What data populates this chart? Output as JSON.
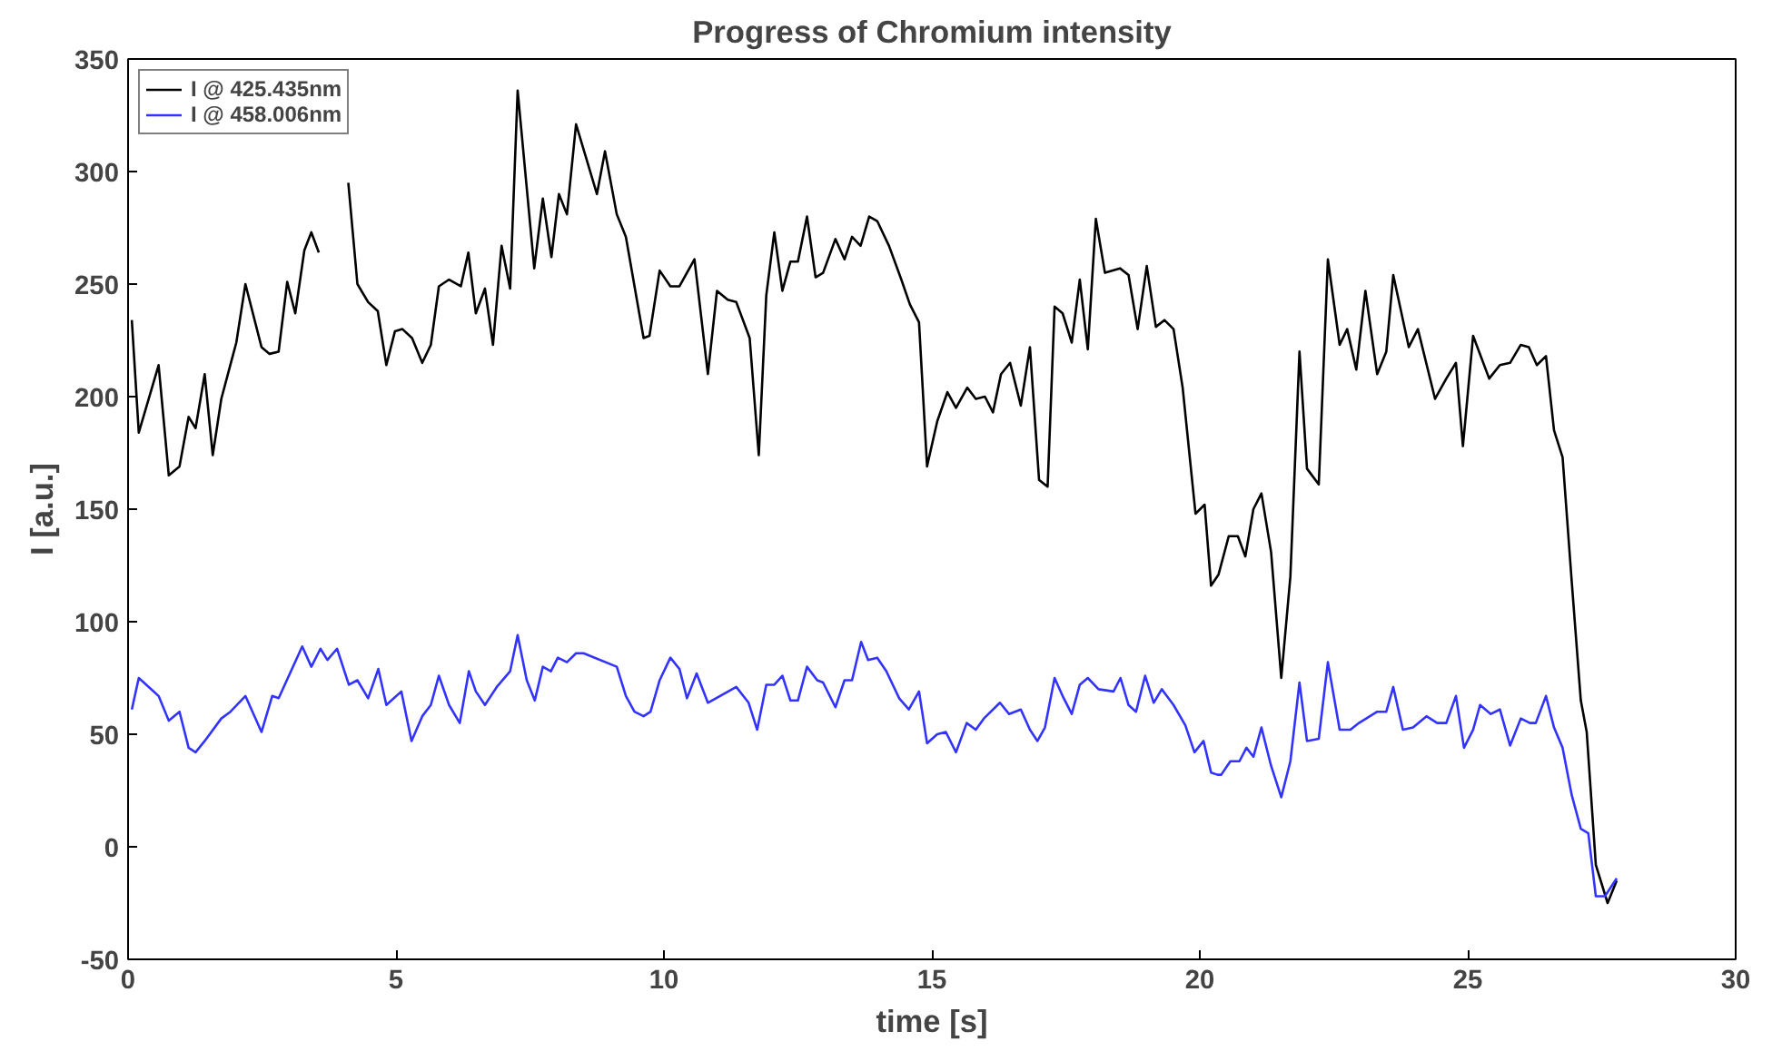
{
  "chart_data": {
    "type": "line",
    "title": "Progress of Chromium intensity",
    "xlabel": "time [s]",
    "ylabel": "I [a.u.]",
    "xlim": [
      0,
      30
    ],
    "xticks": [
      0,
      5,
      10,
      15,
      20,
      25,
      30
    ],
    "ylim": [
      -50,
      350
    ],
    "yticks": [
      -50,
      0,
      50,
      100,
      150,
      200,
      250,
      300,
      350
    ],
    "grid": false,
    "legend": "top left",
    "marker": "none",
    "line_style": "solid",
    "series": [
      {
        "name": "I @ 425.435nm",
        "color": "#000000",
        "x": [
          0.07,
          0.2,
          0.57,
          0.76,
          0.96,
          1.13,
          1.26,
          1.43,
          1.58,
          1.74,
          2.02,
          2.19,
          2.49,
          2.64,
          2.81,
          2.97,
          3.12,
          3.29,
          3.42,
          3.56,
          3.75,
          3.95,
          4.11,
          4.28,
          4.48,
          4.66,
          4.82,
          4.98,
          5.12,
          5.3,
          5.49,
          5.65,
          5.8,
          5.99,
          6.21,
          6.35,
          6.49,
          6.66,
          6.81,
          6.97,
          7.13,
          7.27,
          7.58,
          7.74,
          7.9,
          8.04,
          8.19,
          8.36,
          8.75,
          8.9,
          9.12,
          9.29,
          9.62,
          9.73,
          9.92,
          10.12,
          10.29,
          10.57,
          10.82,
          10.99,
          11.19,
          11.35,
          11.6,
          11.77,
          11.91,
          12.06,
          12.21,
          12.36,
          12.5,
          12.67,
          12.83,
          12.97,
          13.2,
          13.37,
          13.51,
          13.67,
          13.83,
          13.98,
          14.2,
          14.43,
          14.59,
          14.76,
          14.91,
          15.1,
          15.29,
          15.45,
          15.66,
          15.82,
          15.99,
          16.14,
          16.29,
          16.46,
          16.66,
          16.83,
          17.0,
          17.16,
          17.29,
          17.44,
          17.61,
          17.76,
          17.91,
          18.06,
          18.23,
          18.51,
          18.67,
          18.84,
          19.01,
          19.18,
          19.34,
          19.51,
          19.68,
          19.92,
          20.09,
          20.21,
          20.35,
          20.54,
          20.71,
          20.85,
          21.0,
          21.15,
          21.33,
          21.52,
          21.69,
          21.86,
          22.0,
          22.22,
          22.39,
          22.61,
          22.75,
          22.92,
          23.09,
          23.31,
          23.48,
          23.61,
          23.9,
          24.07,
          24.39,
          24.6,
          24.78,
          24.91,
          25.1,
          25.4,
          25.6,
          25.79,
          25.99,
          26.14,
          26.29,
          26.46,
          26.61,
          26.77,
          26.94,
          27.11,
          27.22,
          27.39,
          27.61,
          27.78
        ],
        "values": [
          234,
          184,
          214,
          165,
          169,
          191,
          186,
          210,
          174,
          199,
          224,
          250,
          222,
          219,
          220,
          251,
          237,
          265,
          273,
          264,
          null,
          null,
          295,
          250,
          242,
          238,
          214,
          229,
          230,
          226,
          215,
          223,
          249,
          252,
          249,
          264,
          237,
          248,
          223,
          267,
          248,
          336,
          257,
          288,
          262,
          290,
          281,
          321,
          290,
          309,
          281,
          271,
          226,
          227,
          256,
          249,
          249,
          261,
          210,
          247,
          243,
          242,
          226,
          174,
          245,
          273,
          247,
          260,
          260,
          280,
          253,
          255,
          270,
          261,
          271,
          267,
          280,
          278,
          267,
          252,
          241,
          233,
          169,
          189,
          202,
          195,
          204,
          199,
          200,
          193,
          210,
          215,
          196,
          222,
          163,
          160,
          240,
          237,
          224,
          252,
          221,
          279,
          255,
          257,
          254,
          230,
          258,
          231,
          234,
          230,
          204,
          148,
          152,
          116,
          121,
          138,
          138,
          129,
          150,
          157,
          131,
          75,
          120,
          220,
          168,
          161,
          261,
          223,
          230,
          212,
          247,
          210,
          220,
          254,
          222,
          230,
          199,
          208,
          215,
          178,
          227,
          208,
          214,
          215,
          223,
          222,
          214,
          218,
          185,
          173,
          118,
          65,
          51,
          -8,
          -25,
          -15
        ]
      },
      {
        "name": "I @ 458.006nm",
        "color": "#3333ff",
        "x": [
          0.07,
          0.2,
          0.57,
          0.76,
          0.96,
          1.13,
          1.26,
          1.43,
          1.74,
          1.91,
          2.19,
          2.49,
          2.69,
          2.81,
          3.25,
          3.42,
          3.59,
          3.72,
          3.9,
          4.12,
          4.28,
          4.48,
          4.67,
          4.82,
          5.1,
          5.29,
          5.49,
          5.65,
          5.8,
          5.99,
          6.19,
          6.36,
          6.49,
          6.66,
          6.88,
          7.13,
          7.27,
          7.44,
          7.59,
          7.74,
          7.89,
          8.02,
          8.19,
          8.36,
          8.5,
          9.12,
          9.29,
          9.45,
          9.62,
          9.75,
          9.92,
          10.12,
          10.29,
          10.43,
          10.61,
          10.82,
          11.35,
          11.58,
          11.74,
          11.91,
          12.06,
          12.21,
          12.36,
          12.5,
          12.67,
          12.86,
          12.97,
          13.2,
          13.37,
          13.51,
          13.68,
          13.81,
          13.98,
          14.15,
          14.39,
          14.57,
          14.76,
          14.91,
          15.1,
          15.26,
          15.45,
          15.65,
          15.82,
          15.97,
          16.27,
          16.44,
          16.66,
          16.83,
          16.97,
          17.11,
          17.29,
          17.44,
          17.61,
          17.76,
          17.91,
          18.11,
          18.39,
          18.52,
          18.67,
          18.81,
          18.98,
          19.14,
          19.29,
          19.51,
          19.73,
          19.9,
          20.07,
          20.21,
          20.33,
          20.4,
          20.57,
          20.74,
          20.87,
          21.0,
          21.15,
          21.33,
          21.52,
          21.69,
          21.86,
          22.0,
          22.22,
          22.39,
          22.61,
          22.81,
          22.97,
          23.31,
          23.48,
          23.61,
          23.79,
          23.98,
          24.23,
          24.43,
          24.6,
          24.78,
          24.93,
          25.1,
          25.23,
          25.43,
          25.6,
          25.79,
          25.99,
          26.16,
          26.27,
          26.46,
          26.61,
          26.77,
          26.94,
          27.11,
          27.25,
          27.39,
          27.56,
          27.78
        ],
        "values": [
          61,
          75,
          67,
          56,
          60,
          44,
          42,
          47,
          57,
          60,
          67,
          51,
          67,
          66,
          89,
          80,
          88,
          83,
          88,
          72,
          74,
          66,
          79,
          63,
          69,
          47,
          58,
          63,
          76,
          63,
          55,
          78,
          69,
          63,
          71,
          78,
          94,
          74,
          65,
          80,
          78,
          84,
          82,
          86,
          86,
          80,
          67,
          60,
          58,
          60,
          74,
          84,
          79,
          66,
          77,
          64,
          71,
          64,
          52,
          72,
          72,
          76,
          65,
          65,
          80,
          74,
          73,
          62,
          74,
          74,
          91,
          83,
          84,
          78,
          66,
          61,
          69,
          46,
          50,
          51,
          42,
          55,
          52,
          57,
          64,
          59,
          61,
          52,
          47,
          53,
          75,
          67,
          59,
          72,
          75,
          70,
          69,
          75,
          63,
          60,
          76,
          64,
          70,
          63,
          54,
          42,
          47,
          33,
          32,
          32,
          38,
          38,
          44,
          40,
          53,
          36,
          22,
          38,
          73,
          47,
          48,
          82,
          52,
          52,
          55,
          60,
          60,
          71,
          52,
          53,
          58,
          55,
          55,
          67,
          44,
          52,
          63,
          59,
          61,
          45,
          57,
          55,
          55,
          67,
          53,
          44,
          23,
          8,
          6,
          -22,
          -22,
          -14
        ]
      }
    ]
  }
}
